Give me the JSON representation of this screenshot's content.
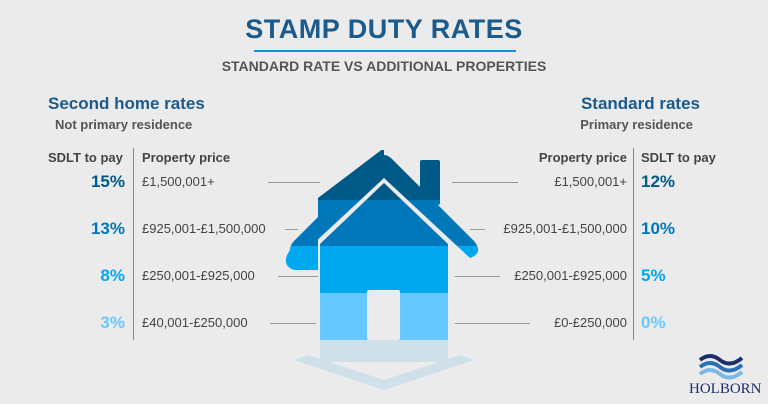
{
  "title": "STAMP DUTY RATES",
  "subtitle": "STANDARD RATE VS ADDITIONAL PROPERTIES",
  "left": {
    "heading": "Second home rates",
    "subheading": "Not primary residence",
    "col_rate": "SDLT to pay",
    "col_price": "Property price",
    "rows": [
      {
        "rate": "15%",
        "price": "£1,500,001+"
      },
      {
        "rate": "13%",
        "price": "£925,001-£1,500,000"
      },
      {
        "rate": "8%",
        "price": "£250,001-£925,000"
      },
      {
        "rate": "3%",
        "price": "£40,001-£250,000"
      }
    ]
  },
  "right": {
    "heading": "Standard rates",
    "subheading": "Primary residence",
    "col_rate": "SDLT to pay",
    "col_price": "Property price",
    "rows": [
      {
        "rate": "12%",
        "price": "£1,500,001+"
      },
      {
        "rate": "10%",
        "price": "£925,001-£1,500,000"
      },
      {
        "rate": "5%",
        "price": "£250,001-£925,000"
      },
      {
        "rate": "0%",
        "price": "£0-£250,000"
      }
    ]
  },
  "tier_colors": [
    "#005a87",
    "#0077b8",
    "#00a8f0",
    "#66c8ff"
  ],
  "logo": {
    "text": "HOLBORN"
  }
}
